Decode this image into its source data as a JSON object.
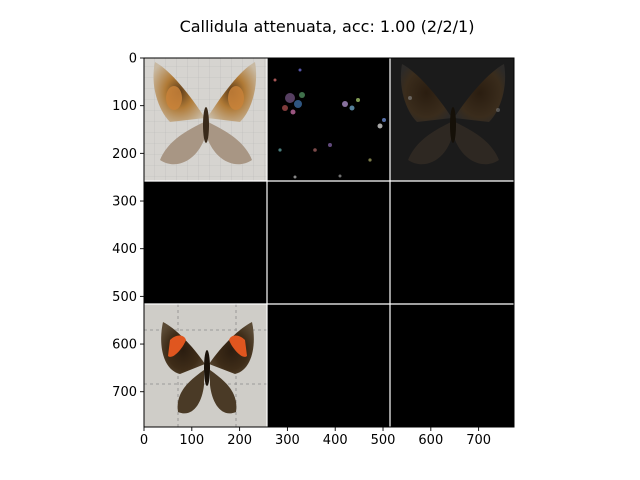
{
  "chart_data": {
    "type": "heatmap",
    "title": "Callidula attenuata, acc: 1.00 (2/2/1)",
    "xlabel": "",
    "ylabel": "",
    "xlim": [
      0,
      774
    ],
    "ylim": [
      774,
      0
    ],
    "grid": false,
    "x_ticks": [
      0,
      100,
      200,
      300,
      400,
      500,
      600,
      700
    ],
    "y_ticks": [
      0,
      100,
      200,
      300,
      400,
      500,
      600,
      700
    ],
    "tile_size": 256,
    "panel_grid": {
      "rows": 3,
      "cols": 3
    },
    "panels": [
      {
        "row": 0,
        "col": 0,
        "content": "butterfly-photo-light-specimen"
      },
      {
        "row": 0,
        "col": 1,
        "content": "saliency-sparse-colored-noise"
      },
      {
        "row": 0,
        "col": 2,
        "content": "dimmed-butterfly-overlay"
      },
      {
        "row": 1,
        "col": 0,
        "content": "black"
      },
      {
        "row": 1,
        "col": 1,
        "content": "black"
      },
      {
        "row": 1,
        "col": 2,
        "content": "black"
      },
      {
        "row": 2,
        "col": 0,
        "content": "butterfly-photo-dark-orange-bands"
      },
      {
        "row": 2,
        "col": 1,
        "content": "black"
      },
      {
        "row": 2,
        "col": 2,
        "content": "black"
      }
    ],
    "colors": {
      "background": "#ffffff",
      "panel_black": "#000000",
      "separator": "#ffffff",
      "axis": "#000000"
    }
  }
}
